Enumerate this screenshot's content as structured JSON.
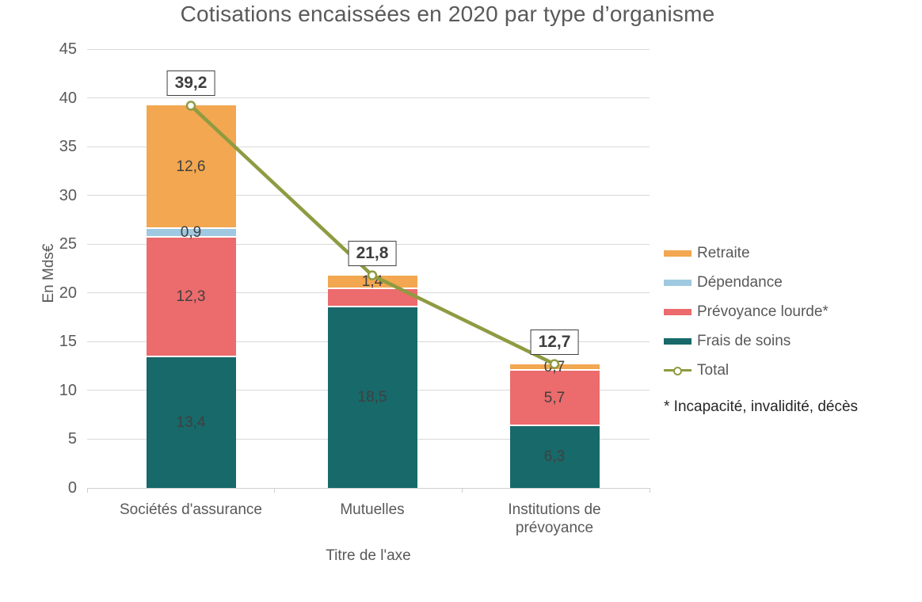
{
  "chart_data": {
    "type": "bar",
    "subtype": "stacked-column-with-total-line",
    "title": "Cotisations encaissées en 2020 par type d’organisme",
    "ylabel": "En Mds€",
    "xlabel": "Titre de l'axe",
    "ylim": [
      0,
      45
    ],
    "ytick_step": 5,
    "grid": true,
    "legend_position": "right",
    "footnote": "* Incapacité, invalidité, décès",
    "categories": [
      "Sociétés d'assurance",
      "Mutuelles",
      "Institutions de prévoyance"
    ],
    "series": [
      {
        "name": "Frais de soins",
        "color": "#17696a",
        "values": [
          13.4,
          18.5,
          6.3
        ],
        "labels": [
          "13,4",
          "18,5",
          "6,3"
        ]
      },
      {
        "name": "Prévoyance lourde*",
        "color": "#ec6b6c",
        "values": [
          12.3,
          1.9,
          5.7
        ],
        "labels": [
          "12,3",
          null,
          "5,7"
        ]
      },
      {
        "name": "Dépendance",
        "color": "#9fc9e0",
        "values": [
          0.9,
          0,
          0
        ],
        "labels": [
          "0,9",
          null,
          null
        ]
      },
      {
        "name": "Retraite",
        "color": "#f2a750",
        "values": [
          12.6,
          1.4,
          0.7
        ],
        "labels": [
          "12,6",
          "1,4",
          "0,7"
        ]
      }
    ],
    "line_series": {
      "name": "Total",
      "color": "#8f9b41",
      "values": [
        39.2,
        21.8,
        12.7
      ],
      "labels": [
        "39,2",
        "21,8",
        "12,7"
      ]
    },
    "legend": [
      {
        "label": "Retraite",
        "type": "bar",
        "color": "#f2a750"
      },
      {
        "label": "Dépendance",
        "type": "bar",
        "color": "#9fc9e0"
      },
      {
        "label": "Prévoyance lourde*",
        "type": "bar",
        "color": "#ec6b6c"
      },
      {
        "label": "Frais de soins",
        "type": "bar",
        "color": "#17696a"
      },
      {
        "label": "Total",
        "type": "line",
        "color": "#8f9b41"
      }
    ]
  },
  "colors": {
    "title_text": "#595959",
    "axis_text": "#595959",
    "segment_label_text": "#404040",
    "gridline": "#d9d9d9",
    "total_box_border": "#404040",
    "background": "#ffffff"
  }
}
